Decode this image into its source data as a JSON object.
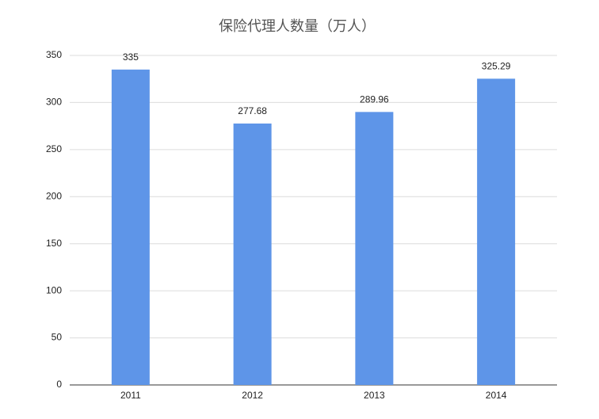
{
  "chart_data": {
    "type": "bar",
    "title": "保险代理人数量（万人）",
    "categories": [
      "2011",
      "2012",
      "2013",
      "2014"
    ],
    "values": [
      335,
      277.68,
      289.96,
      325.29
    ],
    "color": "#5e95e8",
    "ylim": [
      0,
      350
    ],
    "yticks": [
      0,
      50,
      100,
      150,
      200,
      250,
      300,
      350
    ],
    "grid": true
  }
}
